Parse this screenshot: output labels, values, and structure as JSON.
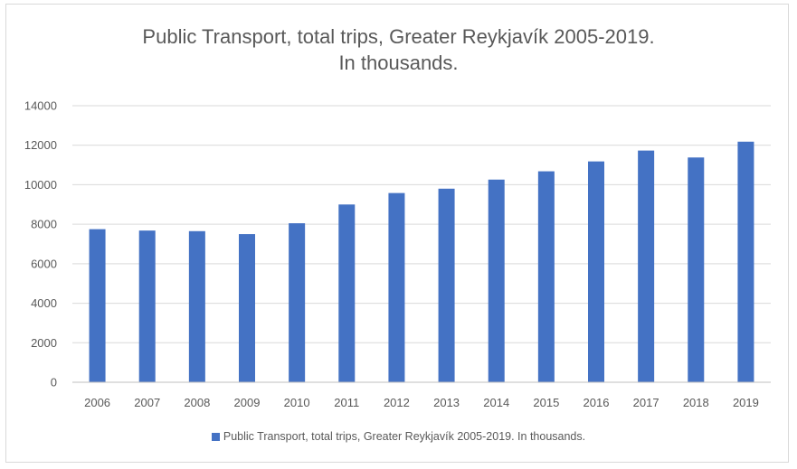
{
  "chart_data": {
    "type": "bar",
    "title": "Public Transport, total trips, Greater Reykjavík 2005-2019.",
    "subtitle": "In thousands.",
    "categories": [
      "2006",
      "2007",
      "2008",
      "2009",
      "2010",
      "2011",
      "2012",
      "2013",
      "2014",
      "2015",
      "2016",
      "2017",
      "2018",
      "2019"
    ],
    "series": [
      {
        "name": "Public Transport, total trips, Greater Reykjavík 2005-2019. In thousands.",
        "values": [
          7750,
          7680,
          7650,
          7500,
          8050,
          9000,
          9580,
          9800,
          10260,
          10680,
          11180,
          11730,
          11380,
          12180
        ],
        "color": "#4472c4"
      }
    ],
    "yticks": [
      "0",
      "2000",
      "4000",
      "6000",
      "8000",
      "10000",
      "12000",
      "14000"
    ],
    "ylim": [
      0,
      14000
    ],
    "grid": true,
    "legend_position": "bottom",
    "xlabel": "",
    "ylabel": ""
  }
}
